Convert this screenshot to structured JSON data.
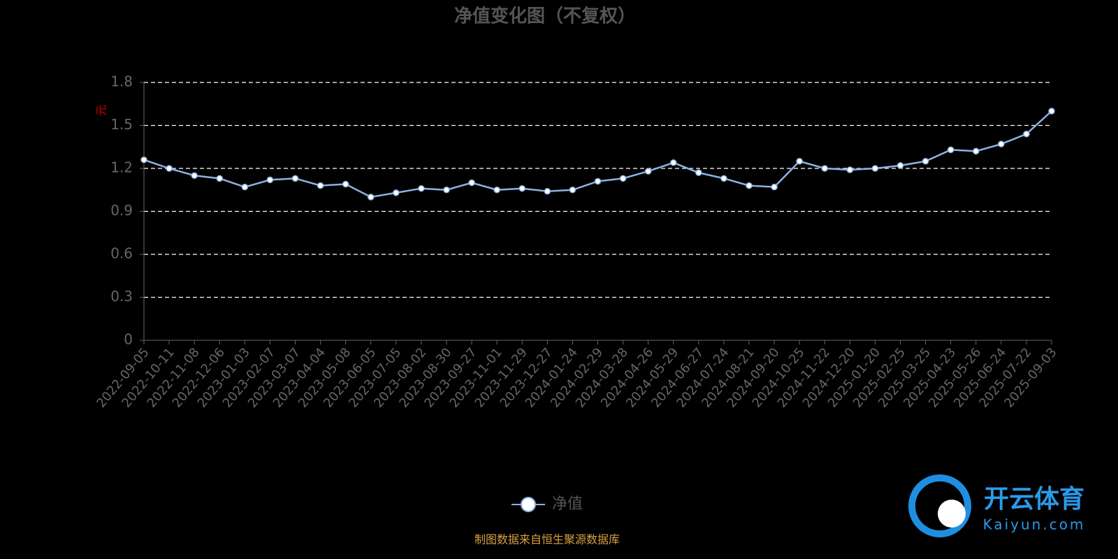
{
  "chart_data": {
    "type": "line",
    "title": "净值变化图（不复权）",
    "y_label": "元",
    "categories": [
      "2022-09-05",
      "2022-10-11",
      "2022-11-08",
      "2022-12-06",
      "2023-01-03",
      "2023-02-07",
      "2023-03-07",
      "2023-04-04",
      "2023-05-08",
      "2023-06-05",
      "2023-07-05",
      "2023-08-02",
      "2023-08-30",
      "2023-09-27",
      "2023-11-01",
      "2023-11-29",
      "2023-12-27",
      "2024-01-24",
      "2024-02-29",
      "2024-03-28",
      "2024-04-26",
      "2024-05-29",
      "2024-06-27",
      "2024-07-24",
      "2024-08-21",
      "2024-09-20",
      "2024-10-25",
      "2024-11-22",
      "2024-12-20",
      "2025-01-20",
      "2025-02-25",
      "2025-03-25",
      "2025-04-23",
      "2025-05-26",
      "2025-06-24",
      "2025-07-22",
      "2025-09-03"
    ],
    "series": [
      {
        "name": "净值",
        "color": "#8eb2e2",
        "values": [
          1.26,
          1.2,
          1.15,
          1.13,
          1.07,
          1.12,
          1.13,
          1.08,
          1.09,
          1.0,
          1.03,
          1.06,
          1.05,
          1.1,
          1.05,
          1.06,
          1.04,
          1.05,
          1.11,
          1.13,
          1.18,
          1.24,
          1.17,
          1.13,
          1.08,
          1.07,
          1.25,
          1.2,
          1.19,
          1.2,
          1.22,
          1.25,
          1.33,
          1.32,
          1.37,
          1.44,
          1.6
        ]
      }
    ],
    "ylim": [
      0,
      1.8
    ],
    "yticks": [
      0,
      0.3,
      0.6,
      0.9,
      1.2,
      1.5,
      1.8
    ],
    "grid": true,
    "source": "制图数据来自恒生聚源数据库"
  },
  "watermark": {
    "name": "开云体育",
    "url": "Kaiyun.com"
  }
}
